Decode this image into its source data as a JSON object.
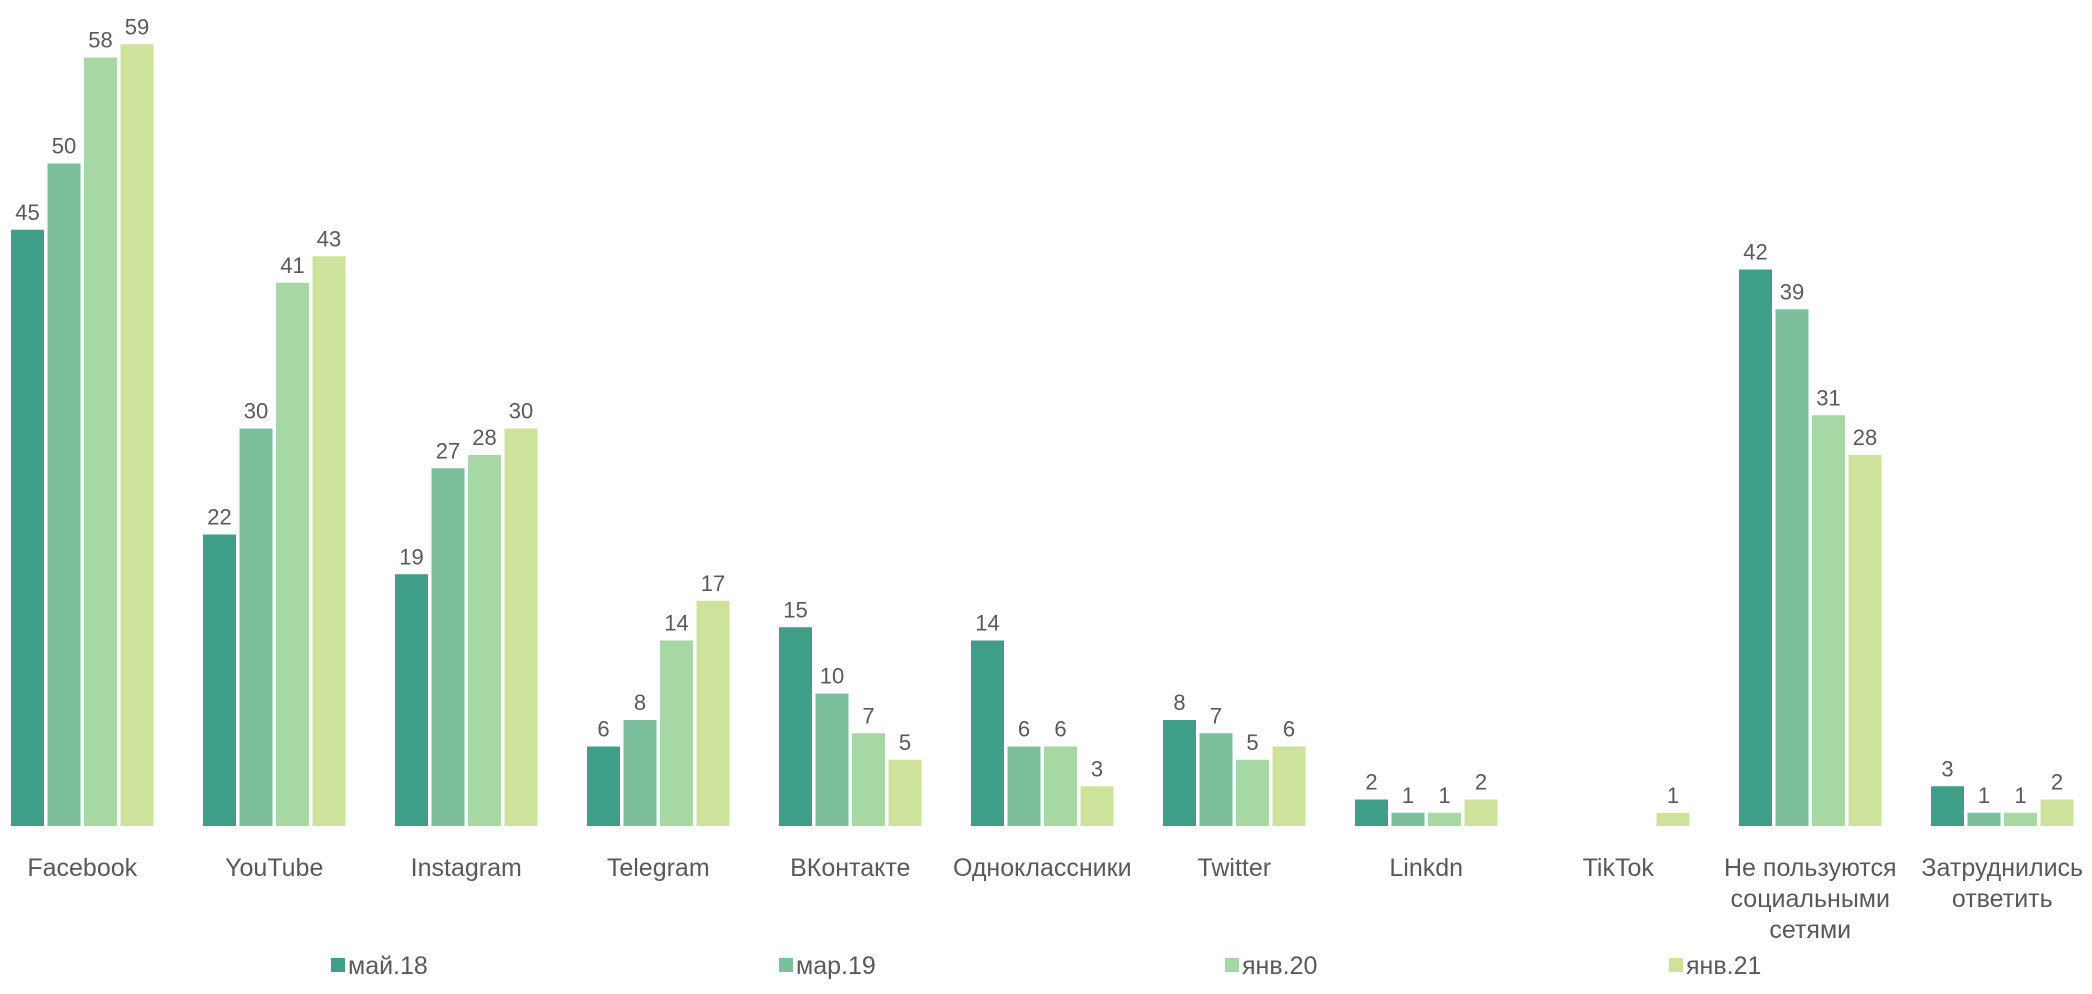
{
  "chart_data": {
    "type": "bar",
    "categories": [
      [
        "Facebook"
      ],
      [
        "YouTube"
      ],
      [
        "Instagram"
      ],
      [
        "Telegram"
      ],
      [
        "ВКонтакте"
      ],
      [
        "Одноклассники"
      ],
      [
        "Twitter"
      ],
      [
        "Linkdn"
      ],
      [
        "TikTok"
      ],
      [
        "Не пользуются",
        "социальными",
        "сетями"
      ],
      [
        "Затруднились",
        "ответить"
      ]
    ],
    "series": [
      {
        "name": "май.18",
        "color": "#3e9e88",
        "values": [
          45,
          22,
          19,
          6,
          15,
          14,
          8,
          2,
          null,
          42,
          3
        ]
      },
      {
        "name": "мар.19",
        "color": "#7cbf9c",
        "values": [
          50,
          30,
          27,
          8,
          10,
          6,
          7,
          1,
          null,
          39,
          1
        ]
      },
      {
        "name": "янв.20",
        "color": "#a8d7a6",
        "values": [
          58,
          41,
          28,
          14,
          7,
          6,
          5,
          1,
          null,
          31,
          1
        ]
      },
      {
        "name": "янв.21",
        "color": "#cde39b",
        "values": [
          59,
          43,
          30,
          17,
          5,
          3,
          6,
          2,
          1,
          28,
          2
        ]
      }
    ],
    "ylim": [
      0,
      59
    ],
    "grid": false,
    "legend_position": "bottom"
  }
}
